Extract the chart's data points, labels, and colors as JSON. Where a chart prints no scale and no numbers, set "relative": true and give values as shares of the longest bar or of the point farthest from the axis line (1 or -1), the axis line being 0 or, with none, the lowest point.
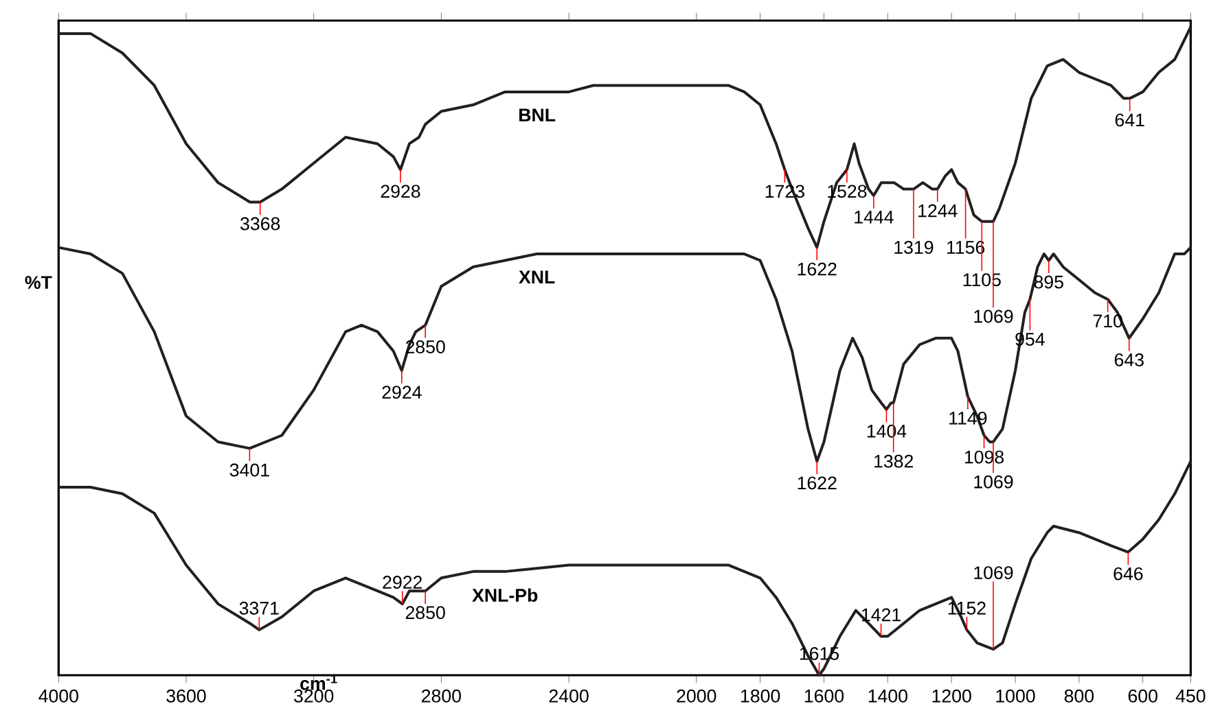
{
  "chart_data": {
    "type": "line",
    "relative": true,
    "xlabel": "cm$^{-1}$",
    "ylabel": "%T",
    "tick_labels": "x",
    "xlim": [
      4000,
      450
    ],
    "xticks": [
      4000,
      3600,
      3200,
      2800,
      2400,
      2000,
      1800,
      1600,
      1400,
      1200,
      1000,
      800,
      600,
      450
    ],
    "series": [
      {
        "name": "BNL",
        "color": "#231f20",
        "x": [
          4000,
          3900,
          3800,
          3700,
          3600,
          3500,
          3400,
          3368,
          3300,
          3200,
          3100,
          3000,
          2950,
          2928,
          2900,
          2870,
          2850,
          2800,
          2700,
          2600,
          2500,
          2400,
          2323,
          2300,
          2200,
          2100,
          2000,
          1900,
          1850,
          1800,
          1750,
          1723,
          1700,
          1650,
          1622,
          1600,
          1560,
          1528,
          1505,
          1490,
          1460,
          1444,
          1420,
          1380,
          1350,
          1319,
          1290,
          1260,
          1244,
          1220,
          1200,
          1180,
          1156,
          1130,
          1105,
          1080,
          1069,
          1050,
          1000,
          950,
          900,
          850,
          800,
          750,
          700,
          660,
          641,
          600,
          550,
          500,
          450
        ],
        "values": [
          0.99,
          0.99,
          0.96,
          0.91,
          0.82,
          0.76,
          0.73,
          0.73,
          0.75,
          0.79,
          0.83,
          0.82,
          0.8,
          0.78,
          0.82,
          0.83,
          0.85,
          0.87,
          0.88,
          0.9,
          0.9,
          0.9,
          0.91,
          0.91,
          0.91,
          0.91,
          0.91,
          0.91,
          0.9,
          0.88,
          0.82,
          0.78,
          0.75,
          0.69,
          0.66,
          0.7,
          0.76,
          0.78,
          0.82,
          0.79,
          0.75,
          0.74,
          0.76,
          0.76,
          0.75,
          0.75,
          0.76,
          0.75,
          0.75,
          0.77,
          0.78,
          0.76,
          0.75,
          0.71,
          0.7,
          0.7,
          0.7,
          0.72,
          0.79,
          0.89,
          0.94,
          0.95,
          0.93,
          0.92,
          0.91,
          0.89,
          0.89,
          0.9,
          0.93,
          0.95,
          1.0
        ]
      },
      {
        "name": "XNL",
        "color": "#231f20",
        "x": [
          4000,
          3900,
          3800,
          3700,
          3600,
          3500,
          3401,
          3300,
          3200,
          3100,
          3050,
          3000,
          2950,
          2924,
          2900,
          2880,
          2850,
          2800,
          2700,
          2600,
          2500,
          2400,
          2300,
          2200,
          2100,
          2000,
          1900,
          1850,
          1800,
          1750,
          1700,
          1650,
          1622,
          1600,
          1550,
          1510,
          1480,
          1450,
          1420,
          1404,
          1390,
          1382,
          1350,
          1300,
          1250,
          1200,
          1180,
          1149,
          1120,
          1098,
          1080,
          1069,
          1040,
          1000,
          970,
          954,
          930,
          910,
          895,
          880,
          850,
          800,
          750,
          710,
          680,
          643,
          600,
          550,
          500,
          470,
          450
        ],
        "values": [
          0.66,
          0.65,
          0.62,
          0.53,
          0.4,
          0.36,
          0.35,
          0.37,
          0.44,
          0.53,
          0.54,
          0.53,
          0.5,
          0.47,
          0.51,
          0.53,
          0.54,
          0.6,
          0.63,
          0.64,
          0.65,
          0.65,
          0.65,
          0.65,
          0.65,
          0.65,
          0.65,
          0.65,
          0.64,
          0.58,
          0.5,
          0.38,
          0.33,
          0.36,
          0.47,
          0.52,
          0.49,
          0.44,
          0.42,
          0.41,
          0.42,
          0.42,
          0.48,
          0.51,
          0.52,
          0.52,
          0.5,
          0.43,
          0.4,
          0.37,
          0.36,
          0.36,
          0.38,
          0.47,
          0.56,
          0.58,
          0.63,
          0.65,
          0.64,
          0.65,
          0.63,
          0.61,
          0.59,
          0.58,
          0.56,
          0.52,
          0.55,
          0.59,
          0.65,
          0.65,
          0.66
        ]
      },
      {
        "name": "XNL-Pb",
        "color": "#231f20",
        "x": [
          4000,
          3900,
          3800,
          3700,
          3600,
          3500,
          3400,
          3371,
          3300,
          3200,
          3100,
          3000,
          2950,
          2922,
          2900,
          2850,
          2800,
          2700,
          2600,
          2400,
          2200,
          2000,
          1900,
          1850,
          1800,
          1750,
          1700,
          1650,
          1615,
          1600,
          1550,
          1500,
          1460,
          1421,
          1400,
          1350,
          1300,
          1250,
          1200,
          1170,
          1152,
          1120,
          1069,
          1040,
          1000,
          950,
          900,
          880,
          800,
          700,
          646,
          600,
          550,
          500,
          450
        ],
        "values": [
          0.29,
          0.29,
          0.28,
          0.25,
          0.17,
          0.11,
          0.08,
          0.07,
          0.09,
          0.13,
          0.15,
          0.13,
          0.12,
          0.11,
          0.13,
          0.13,
          0.15,
          0.16,
          0.16,
          0.17,
          0.17,
          0.17,
          0.17,
          0.16,
          0.15,
          0.12,
          0.08,
          0.03,
          0.0,
          0.01,
          0.06,
          0.1,
          0.08,
          0.06,
          0.06,
          0.08,
          0.1,
          0.11,
          0.12,
          0.09,
          0.07,
          0.05,
          0.04,
          0.05,
          0.11,
          0.18,
          0.22,
          0.23,
          0.22,
          0.2,
          0.19,
          0.21,
          0.24,
          0.28,
          0.33
        ]
      }
    ],
    "annotations": [
      {
        "text": "3368",
        "x": 3368,
        "y": 0.73
      },
      {
        "text": "2928",
        "x": 2928,
        "y": 0.78
      },
      {
        "text": "1723",
        "x": 1723,
        "y": 0.78
      },
      {
        "text": "1622",
        "x": 1622,
        "y": 0.66
      },
      {
        "text": "1528",
        "x": 1528,
        "y": 0.78
      },
      {
        "text": "1444",
        "x": 1444,
        "y": 0.74
      },
      {
        "text": "1319",
        "x": 1319,
        "y": 0.75
      },
      {
        "text": "1244",
        "x": 1244,
        "y": 0.75
      },
      {
        "text": "1156",
        "x": 1156,
        "y": 0.75
      },
      {
        "text": "1105",
        "x": 1105,
        "y": 0.7
      },
      {
        "text": "1069",
        "x": 1069,
        "y": 0.7
      },
      {
        "text": "641",
        "x": 641,
        "y": 0.89
      },
      {
        "text": "3401",
        "x": 3401,
        "y": 0.35
      },
      {
        "text": "2924",
        "x": 2924,
        "y": 0.47
      },
      {
        "text": "2850",
        "x": 2850,
        "y": 0.54
      },
      {
        "text": "1622",
        "x": 1622,
        "y": 0.33
      },
      {
        "text": "1404",
        "x": 1404,
        "y": 0.41
      },
      {
        "text": "1382",
        "x": 1382,
        "y": 0.42
      },
      {
        "text": "1149",
        "x": 1149,
        "y": 0.43
      },
      {
        "text": "1098",
        "x": 1098,
        "y": 0.37
      },
      {
        "text": "1069",
        "x": 1069,
        "y": 0.36
      },
      {
        "text": "954",
        "x": 954,
        "y": 0.58
      },
      {
        "text": "895",
        "x": 895,
        "y": 0.64
      },
      {
        "text": "710",
        "x": 710,
        "y": 0.58
      },
      {
        "text": "643",
        "x": 643,
        "y": 0.52
      },
      {
        "text": "3371",
        "x": 3371,
        "y": 0.07
      },
      {
        "text": "2922",
        "x": 2922,
        "y": 0.11
      },
      {
        "text": "2850",
        "x": 2850,
        "y": 0.13
      },
      {
        "text": "1615",
        "x": 1615,
        "y": 0.0
      },
      {
        "text": "1421",
        "x": 1421,
        "y": 0.06
      },
      {
        "text": "1152",
        "x": 1152,
        "y": 0.07
      },
      {
        "text": "1069",
        "x": 1069,
        "y": 0.04
      },
      {
        "text": "646",
        "x": 646,
        "y": 0.19
      }
    ]
  }
}
